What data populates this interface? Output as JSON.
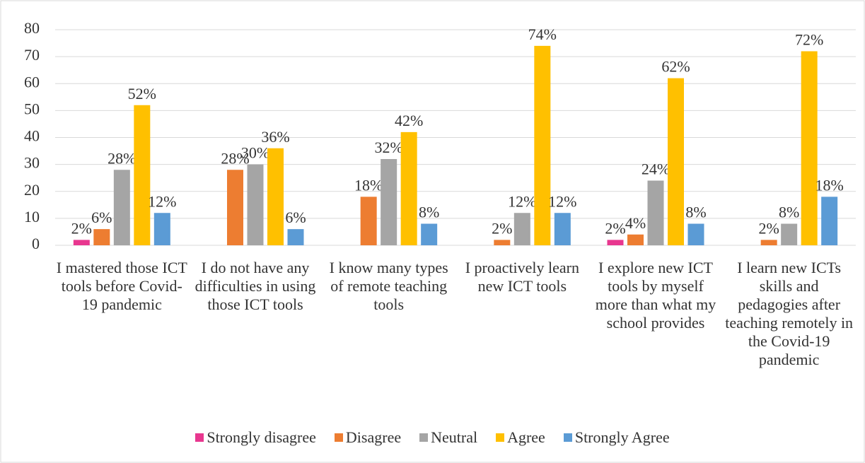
{
  "chart_data": {
    "type": "bar",
    "categories": [
      "I mastered those ICT tools before Covid-19 pandemic",
      "I do not have any difficulties in using those ICT tools",
      "I know many types of remote teaching tools",
      "I proactively learn new ICT tools",
      "I explore new ICT tools by myself more than what my school provides",
      "I learn new ICTs skills and pedagogies after teaching remotely in the Covid-19 pandemic"
    ],
    "series": [
      {
        "name": "Strongly disagree",
        "color": "#e8378f",
        "values": [
          2,
          null,
          null,
          null,
          2,
          null
        ],
        "value_labels": [
          "2%",
          null,
          null,
          null,
          "2%",
          null
        ]
      },
      {
        "name": "Disagree",
        "color": "#ed7d31",
        "values": [
          6,
          28,
          18,
          2,
          4,
          2
        ],
        "value_labels": [
          "6%",
          "28%",
          "18%",
          "2%",
          "4%",
          "2%"
        ]
      },
      {
        "name": "Neutral",
        "color": "#a5a5a5",
        "values": [
          28,
          30,
          32,
          12,
          24,
          8
        ],
        "value_labels": [
          "28%",
          "30%",
          "32%",
          "12%",
          "24%",
          "8%"
        ]
      },
      {
        "name": "Agree",
        "color": "#ffc000",
        "values": [
          52,
          36,
          42,
          74,
          62,
          72
        ],
        "value_labels": [
          "52%",
          "36%",
          "42%",
          "74%",
          "62%",
          "72%"
        ]
      },
      {
        "name": "Strongly Agree",
        "color": "#5b9bd5",
        "values": [
          12,
          6,
          8,
          12,
          8,
          18
        ],
        "value_labels": [
          "12%",
          "6%",
          "8%",
          "12%",
          "8%",
          "18%"
        ]
      }
    ],
    "ylim": [
      0,
      80
    ],
    "yticks": [
      0,
      10,
      20,
      30,
      40,
      50,
      60,
      70,
      80
    ],
    "grid": true,
    "legend": "bottom"
  }
}
